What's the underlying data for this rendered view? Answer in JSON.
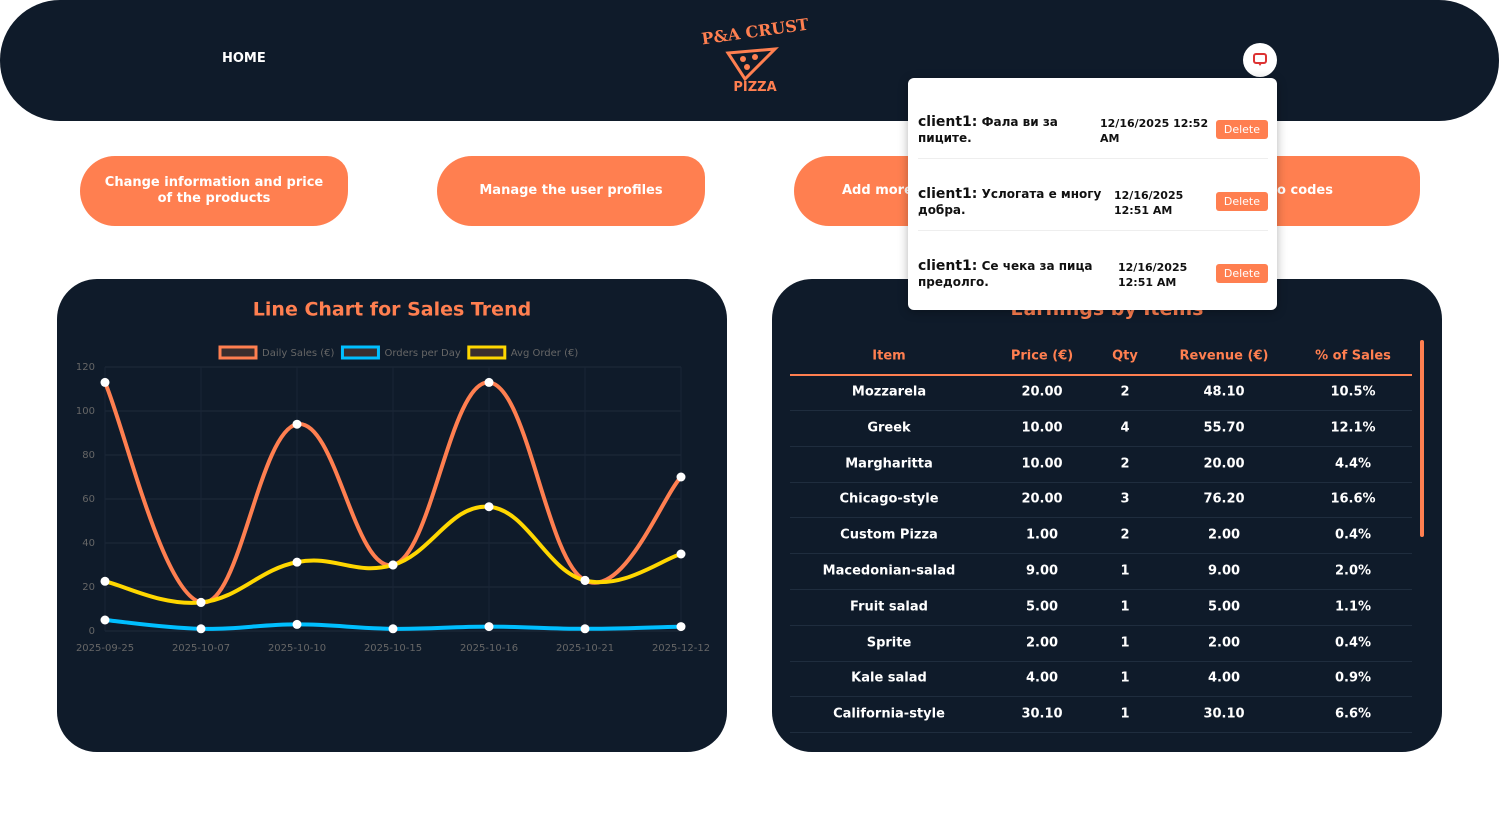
{
  "nav": {
    "home": "HOME",
    "logo_top": "P&A CRUST",
    "logo_bottom": "PIZZA"
  },
  "buttons": [
    "Change information and price of the products",
    "Manage the user profiles",
    "Add more",
    "o codes"
  ],
  "notifications": [
    {
      "user": "client1:",
      "message": "Фала ви за пиците.",
      "time": "12/16/2025 12:52 AM",
      "action": "Delete"
    },
    {
      "user": "client1:",
      "message": "Услогата е многу добра.",
      "time": "12/16/2025 12:51 AM",
      "action": "Delete"
    },
    {
      "user": "client1:",
      "message": "Се чека за пица предолго.",
      "time": "12/16/2025 12:51 AM",
      "action": "Delete"
    }
  ],
  "chart_data": {
    "type": "line",
    "title": "Line Chart for Sales Trend",
    "categories": [
      "2025-09-25",
      "2025-10-07",
      "2025-10-10",
      "2025-10-15",
      "2025-10-16",
      "2025-10-21",
      "2025-12-12"
    ],
    "series": [
      {
        "name": "Daily Sales (€)",
        "color": "#ff7f50",
        "values": [
          113,
          13,
          94,
          30,
          113,
          23,
          70
        ]
      },
      {
        "name": "Orders per Day",
        "color": "#00bfff",
        "values": [
          5,
          1,
          3,
          1,
          2,
          1,
          2
        ]
      },
      {
        "name": "Avg Order (€)",
        "color": "#ffd700",
        "values": [
          22.6,
          13,
          31.3,
          30,
          56.5,
          23,
          35
        ]
      }
    ],
    "ylim": [
      0,
      120
    ],
    "yticks": [
      0,
      20,
      40,
      60,
      80,
      100,
      120
    ],
    "grid": true
  },
  "table": {
    "title": "Earnings by Items",
    "columns": [
      "Item",
      "Price (€)",
      "Qty",
      "Revenue (€)",
      "% of Sales"
    ],
    "rows": [
      [
        "Mozzarela",
        "20.00",
        "2",
        "48.10",
        "10.5%"
      ],
      [
        "Greek",
        "10.00",
        "4",
        "55.70",
        "12.1%"
      ],
      [
        "Margharitta",
        "10.00",
        "2",
        "20.00",
        "4.4%"
      ],
      [
        "Chicago-style",
        "20.00",
        "3",
        "76.20",
        "16.6%"
      ],
      [
        "Custom Pizza",
        "1.00",
        "2",
        "2.00",
        "0.4%"
      ],
      [
        "Macedonian-salad",
        "9.00",
        "1",
        "9.00",
        "2.0%"
      ],
      [
        "Fruit salad",
        "5.00",
        "1",
        "5.00",
        "1.1%"
      ],
      [
        "Sprite",
        "2.00",
        "1",
        "2.00",
        "0.4%"
      ],
      [
        "Kale salad",
        "4.00",
        "1",
        "4.00",
        "0.9%"
      ],
      [
        "California-style",
        "30.10",
        "1",
        "30.10",
        "6.6%"
      ]
    ]
  }
}
